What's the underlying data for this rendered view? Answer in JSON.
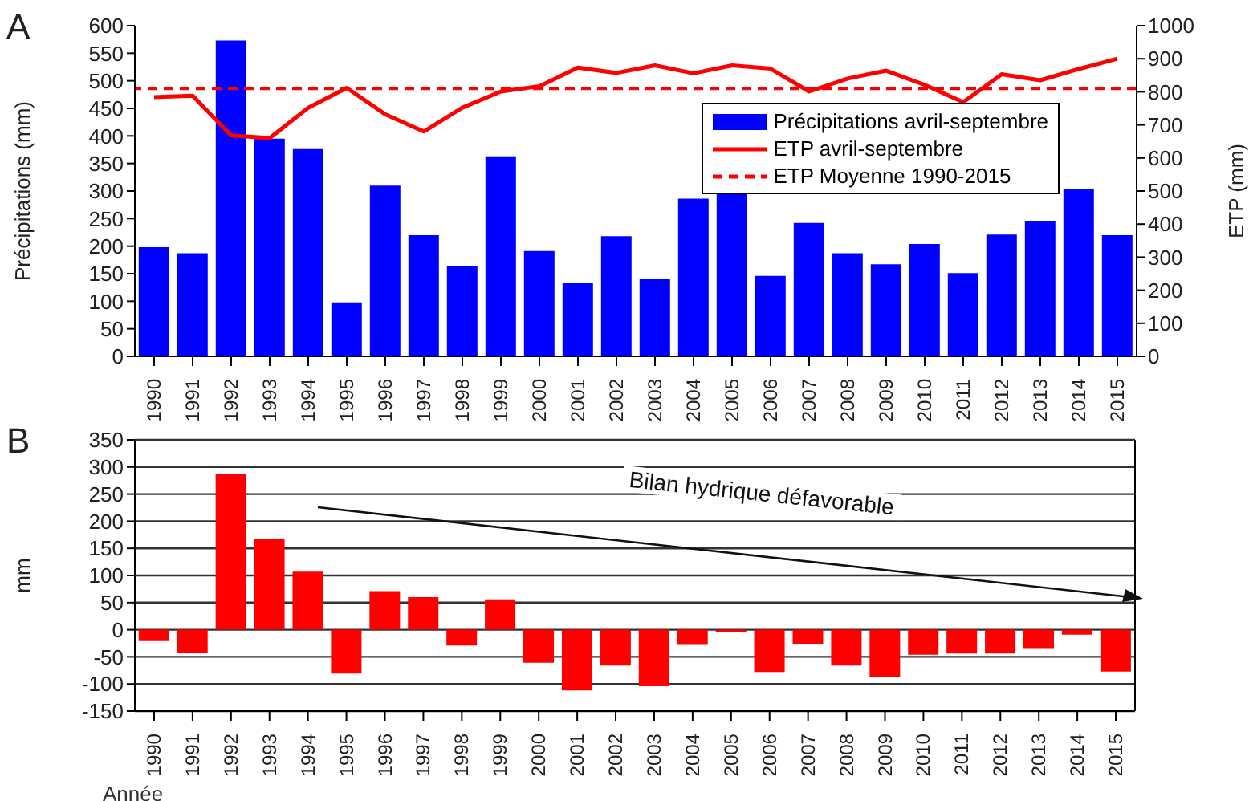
{
  "chart_data": [
    {
      "type": "bar",
      "annotations": [
        "A"
      ],
      "categories": [
        "1990",
        "1991",
        "1992",
        "1993",
        "1994",
        "1995",
        "1996",
        "1997",
        "1998",
        "1999",
        "2000",
        "2001",
        "2002",
        "2003",
        "2004",
        "2005",
        "2006",
        "2007",
        "2008",
        "2009",
        "2010",
        "2011",
        "2012",
        "2013",
        "2014",
        "2015"
      ],
      "series": [
        {
          "name": "Précipitations avril-septembre",
          "type": "bar",
          "color": "#0000ff",
          "values": [
            198,
            187,
            573,
            395,
            376,
            98,
            310,
            220,
            163,
            363,
            191,
            134,
            218,
            140,
            286,
            302,
            146,
            242,
            187,
            167,
            204,
            151,
            221,
            246,
            304,
            220
          ]
        },
        {
          "name": "ETP avril-septembre",
          "type": "line",
          "axis": "y2",
          "color": "#ff0000",
          "values": [
            784,
            788,
            668,
            660,
            752,
            812,
            732,
            680,
            752,
            801,
            817,
            873,
            857,
            880,
            856,
            880,
            870,
            801,
            840,
            864,
            821,
            769,
            853,
            835,
            869,
            900
          ]
        }
      ],
      "ref_lines": [
        {
          "axis": "y2",
          "value": 810,
          "label": "ETP Moyenne 1990-2015",
          "color": "#ff0000",
          "line_style": "dashed"
        }
      ],
      "ylabel": "Précipitations (mm)",
      "y2label": "ETP (mm)",
      "ylim": [
        0,
        600
      ],
      "yticks": [
        0,
        50,
        100,
        150,
        200,
        250,
        300,
        350,
        400,
        450,
        500,
        550,
        600
      ],
      "y2lim": [
        0,
        1000
      ],
      "y2ticks": [
        0,
        100,
        200,
        300,
        400,
        500,
        600,
        700,
        800,
        900,
        1000
      ],
      "legend": "top right",
      "marker": "none",
      "line_style": "solid"
    },
    {
      "type": "bar",
      "annotations": [
        "B",
        "Bilan hydrique défavorable"
      ],
      "categories": [
        "1990",
        "1991",
        "1992",
        "1993",
        "1994",
        "1995",
        "1996",
        "1997",
        "1998",
        "1999",
        "2000",
        "2001",
        "2002",
        "2003",
        "2004",
        "2005",
        "2006",
        "2007",
        "2008",
        "2009",
        "2010",
        "2011",
        "2012",
        "2013",
        "2014",
        "2015"
      ],
      "values": [
        -21,
        -42,
        288,
        167,
        107,
        -81,
        71,
        60,
        -29,
        56,
        -61,
        -112,
        -66,
        -104,
        -28,
        -4,
        -78,
        -27,
        -66,
        -88,
        -46,
        -44,
        -44,
        -34,
        -9,
        -77
      ],
      "color": "#ff0000",
      "ylabel": "mm",
      "xlabel": "Année",
      "ylim": [
        -150,
        350
      ],
      "yticks": [
        -150,
        -100,
        -50,
        0,
        50,
        100,
        150,
        200,
        250,
        300,
        350
      ],
      "grid": "y"
    }
  ]
}
